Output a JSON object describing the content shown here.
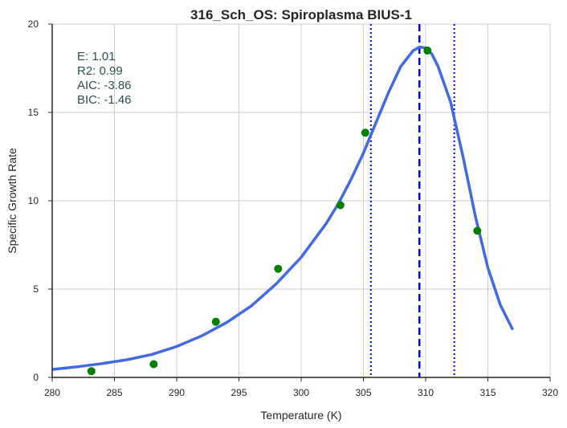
{
  "chart_data": {
    "type": "line",
    "title": "316_Sch_OS: Spiroplasma BIUS-1",
    "xlabel": "Temperature (K)",
    "ylabel": "Specific Growth Rate",
    "xlim": [
      280,
      320
    ],
    "ylim": [
      0,
      20
    ],
    "xticks": [
      280,
      285,
      290,
      295,
      300,
      305,
      310,
      315,
      320
    ],
    "yticks": [
      0,
      5,
      10,
      15,
      20
    ],
    "grid": true,
    "colors": {
      "fit_line": "#4169e1",
      "points": "#008000",
      "vlines": "#0000ff",
      "stats_text": "#2f4f4f",
      "grid": "#cccccc",
      "axes": "#262626"
    },
    "series": [
      {
        "type": "scatter",
        "x": [
          283.15,
          288.15,
          293.15,
          298.15,
          303.15,
          305.15,
          310.15,
          314.15
        ],
        "y": [
          0.35,
          0.75,
          3.15,
          6.15,
          9.75,
          13.85,
          18.5,
          8.3
        ]
      },
      {
        "type": "line",
        "x": [
          280,
          282,
          284,
          286,
          288,
          290,
          292,
          294,
          296,
          298,
          300,
          302,
          303,
          304,
          305,
          306,
          307,
          308,
          309,
          309.5,
          310,
          310.5,
          311,
          312,
          313,
          314,
          315,
          316,
          317
        ],
        "y": [
          0.45,
          0.6,
          0.78,
          1.0,
          1.3,
          1.75,
          2.35,
          3.1,
          4.05,
          5.3,
          6.8,
          8.7,
          9.85,
          11.2,
          12.7,
          14.4,
          16.1,
          17.6,
          18.5,
          18.7,
          18.65,
          18.3,
          17.6,
          15.6,
          12.5,
          9.1,
          6.2,
          4.1,
          2.7
        ]
      }
    ],
    "vlines": [
      {
        "x": 309.5,
        "style": "dashed"
      },
      {
        "x": 305.6,
        "style": "dotted"
      },
      {
        "x": 312.3,
        "style": "dotted"
      }
    ],
    "annotation": {
      "lines": [
        "E:  1.01",
        "R2:  0.99",
        "AIC: -3.86",
        "BIC: -1.46"
      ],
      "position": "top-left"
    }
  }
}
